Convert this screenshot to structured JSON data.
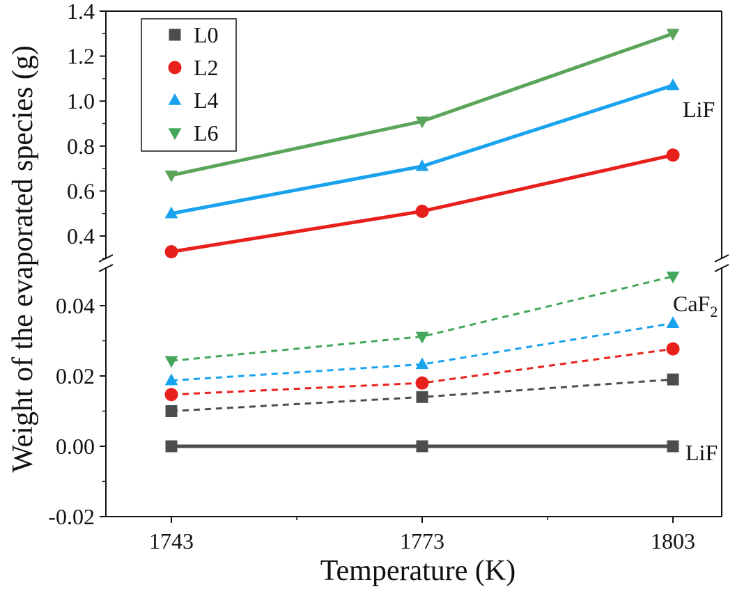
{
  "chart_data": {
    "type": "line",
    "xlabel": "Temperature (K)",
    "ylabel": "Weight of the evaporated species (g)",
    "categories": [
      1743,
      1773,
      1803
    ],
    "x_tick_labels": [
      "1743",
      "1773",
      "1803"
    ],
    "axis_break": true,
    "upper_panel": {
      "ylim": [
        0.3,
        1.4
      ],
      "ticks": [
        0.4,
        0.6,
        0.8,
        1.0,
        1.2,
        1.4
      ],
      "tick_labels": [
        "0.4",
        "0.6",
        "0.8",
        "1.0",
        "1.2",
        "1.4"
      ],
      "annotation": "LiF"
    },
    "lower_panel": {
      "ylim": [
        -0.02,
        0.05
      ],
      "ticks": [
        -0.02,
        0.0,
        0.02,
        0.04
      ],
      "tick_labels": [
        "-0.02",
        "0.00",
        "0.02",
        "0.04"
      ],
      "annotation_caf2": {
        "text": "CaF",
        "sub": "2"
      },
      "annotation_lif": "LiF"
    },
    "legend": {
      "position": "top-left",
      "entries": [
        "L0",
        "L2",
        "L4",
        "L6"
      ]
    },
    "series": [
      {
        "name": "L0",
        "color": "#4d4d4d",
        "marker": "square",
        "panel": "lower",
        "style": "solid",
        "species": "LiF",
        "values": [
          0.0,
          0.0,
          0.0
        ]
      },
      {
        "name": "L0",
        "color": "#4d4d4d",
        "marker": "square",
        "panel": "lower",
        "style": "dashed",
        "species": "CaF2",
        "values": [
          0.01,
          0.014,
          0.019
        ]
      },
      {
        "name": "L2",
        "color": "#e8201c",
        "marker": "circle",
        "panel": "lower",
        "style": "dashed",
        "species": "CaF2",
        "values": [
          0.0147,
          0.018,
          0.0277
        ]
      },
      {
        "name": "L4",
        "color": "#19a3ef",
        "marker": "triangle-up",
        "panel": "lower",
        "style": "dashed",
        "species": "CaF2",
        "values": [
          0.0187,
          0.0233,
          0.035
        ]
      },
      {
        "name": "L6",
        "color": "#43a65a",
        "marker": "triangle-down",
        "panel": "lower",
        "style": "dashed",
        "species": "CaF2",
        "values": [
          0.0243,
          0.0312,
          0.0483
        ]
      },
      {
        "name": "L2",
        "color": "#e8201c",
        "marker": "circle",
        "panel": "upper",
        "style": "solid",
        "species": "LiF",
        "values": [
          0.33,
          0.51,
          0.76
        ]
      },
      {
        "name": "L4",
        "color": "#19a3ef",
        "marker": "triangle-up",
        "panel": "upper",
        "style": "solid",
        "species": "LiF",
        "values": [
          0.5,
          0.71,
          1.07
        ]
      },
      {
        "name": "L6",
        "color": "#5ba55b",
        "marker": "triangle-down",
        "panel": "upper",
        "style": "solid",
        "species": "LiF",
        "values": [
          0.67,
          0.91,
          1.3
        ]
      }
    ]
  }
}
